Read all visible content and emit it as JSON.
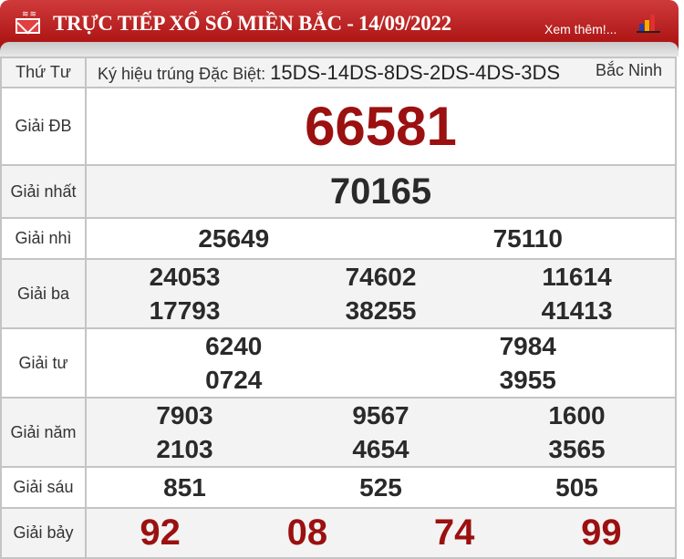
{
  "header": {
    "title": "TRỰC TIẾP XỔ SỐ MIỀN BẮC - 14/09/2022",
    "more": "Xem thêm!..."
  },
  "info": {
    "day": "Thứ Tư",
    "symbol_label": "Ký hiệu trúng Đặc Biệt:",
    "symbol": "15DS-14DS-8DS-2DS-4DS-3DS",
    "province": "Bắc Ninh"
  },
  "prizes": {
    "db": {
      "label": "Giải ĐB",
      "numbers": [
        "66581"
      ]
    },
    "g1": {
      "label": "Giải nhất",
      "numbers": [
        "70165"
      ]
    },
    "g2": {
      "label": "Giải nhì",
      "numbers": [
        "25649",
        "75110"
      ]
    },
    "g3": {
      "label": "Giải ba",
      "numbers": [
        "24053",
        "74602",
        "11614",
        "17793",
        "38255",
        "41413"
      ]
    },
    "g4": {
      "label": "Giải tư",
      "numbers": [
        "6240",
        "7984",
        "0724",
        "3955"
      ]
    },
    "g5": {
      "label": "Giải năm",
      "numbers": [
        "7903",
        "9567",
        "1600",
        "2103",
        "4654",
        "3565"
      ]
    },
    "g6": {
      "label": "Giải sáu",
      "numbers": [
        "851",
        "525",
        "505"
      ]
    },
    "g7": {
      "label": "Giải bảy",
      "numbers": [
        "92",
        "08",
        "74",
        "99"
      ]
    }
  },
  "colors": {
    "header": "#b01818",
    "special": "#9b1010"
  }
}
